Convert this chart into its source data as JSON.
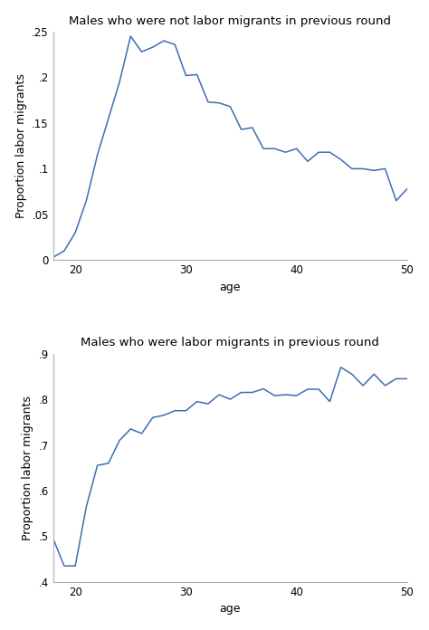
{
  "title1": "Males who were not labor migrants in previous round",
  "title2": "Males who were labor migrants in previous round",
  "xlabel": "age",
  "ylabel": "Proportion labor migrants",
  "line_color": "#3d6eb0",
  "plot1": {
    "x": [
      18,
      19,
      20,
      21,
      22,
      23,
      24,
      25,
      26,
      27,
      28,
      29,
      30,
      31,
      32,
      33,
      34,
      35,
      36,
      37,
      38,
      39,
      40,
      41,
      42,
      43,
      44,
      45,
      46,
      47,
      48,
      49,
      50
    ],
    "y": [
      0.003,
      0.01,
      0.03,
      0.065,
      0.115,
      0.155,
      0.195,
      0.245,
      0.228,
      0.233,
      0.24,
      0.236,
      0.202,
      0.203,
      0.173,
      0.172,
      0.168,
      0.143,
      0.145,
      0.122,
      0.122,
      0.118,
      0.122,
      0.108,
      0.118,
      0.118,
      0.11,
      0.1,
      0.1,
      0.098,
      0.1,
      0.065,
      0.078
    ],
    "xlim": [
      18,
      50
    ],
    "ylim": [
      0,
      0.25
    ],
    "yticks": [
      0,
      0.05,
      0.1,
      0.15,
      0.2,
      0.25
    ],
    "ytick_labels": [
      "0",
      ".05",
      ".1",
      ".15",
      ".2",
      ".25"
    ],
    "xticks": [
      20,
      30,
      40,
      50
    ]
  },
  "plot2": {
    "x": [
      18,
      19,
      20,
      21,
      22,
      23,
      24,
      25,
      26,
      27,
      28,
      29,
      30,
      31,
      32,
      33,
      34,
      35,
      36,
      37,
      38,
      39,
      40,
      41,
      42,
      43,
      44,
      45,
      46,
      47,
      48,
      49,
      50
    ],
    "y": [
      0.495,
      0.435,
      0.435,
      0.565,
      0.655,
      0.66,
      0.71,
      0.735,
      0.725,
      0.76,
      0.765,
      0.775,
      0.775,
      0.795,
      0.79,
      0.81,
      0.8,
      0.815,
      0.815,
      0.823,
      0.808,
      0.81,
      0.808,
      0.822,
      0.822,
      0.795,
      0.87,
      0.855,
      0.83,
      0.855,
      0.83,
      0.845,
      0.845
    ],
    "xlim": [
      18,
      50
    ],
    "ylim": [
      0.4,
      0.9
    ],
    "yticks": [
      0.4,
      0.5,
      0.6,
      0.7,
      0.8,
      0.9
    ],
    "ytick_labels": [
      ".4",
      ".5",
      ".6",
      ".7",
      ".8",
      ".9"
    ],
    "xticks": [
      20,
      30,
      40,
      50
    ]
  },
  "background_color": "#ffffff",
  "title_fontsize": 9.5,
  "label_fontsize": 9,
  "tick_fontsize": 8.5,
  "spine_color": "#b0b0b0",
  "linewidth": 1.1
}
